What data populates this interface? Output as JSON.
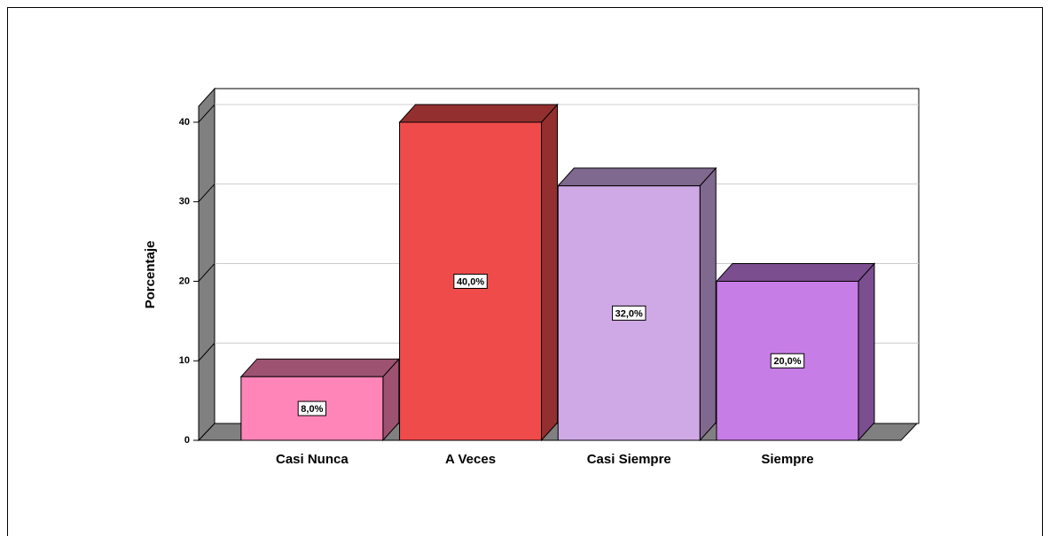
{
  "chart_data": {
    "type": "bar3d",
    "y_label": "Porcentaje",
    "categories": [
      "Casi Nunca",
      "A Veces",
      "Casi Siempre",
      "Siempre"
    ],
    "values": [
      8,
      40,
      32,
      20
    ],
    "value_labels": [
      "8,0%",
      "40,0%",
      "32,0%",
      "20,0%"
    ],
    "colors": [
      "#ff85b8",
      "#ef4b4b",
      "#cfa9e6",
      "#c77de6"
    ],
    "ylim": [
      0,
      42
    ],
    "yticks": [
      0,
      10,
      20,
      30,
      40
    ],
    "grid": true
  }
}
